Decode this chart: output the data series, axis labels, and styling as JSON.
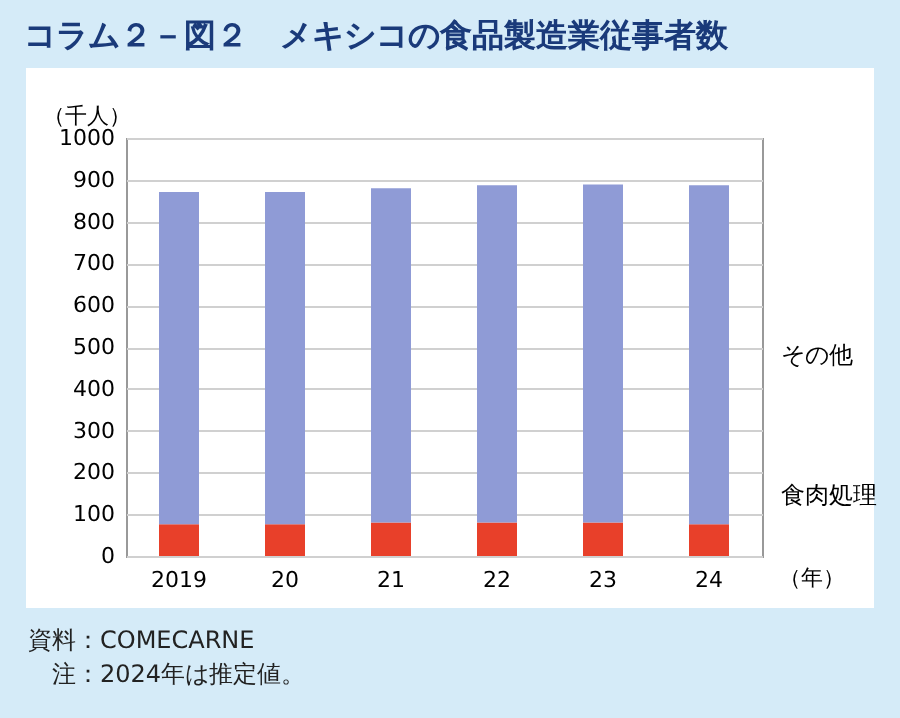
{
  "chart_data": {
    "type": "bar",
    "title": "コラム２－図２　メキシコの食品製造業従事者数",
    "ylabel": "（千人）",
    "xlabel": "（年）",
    "categories": [
      "2019",
      "20",
      "21",
      "22",
      "23",
      "24"
    ],
    "stacked": true,
    "series": [
      {
        "name": "食肉処理",
        "color": "#e8402a",
        "values": [
          76,
          76,
          80,
          80,
          80,
          76
        ]
      },
      {
        "name": "その他",
        "color": "#8f9bd6",
        "values": [
          795,
          795,
          800,
          807,
          809,
          811
        ]
      }
    ],
    "ylim": [
      0,
      1000
    ],
    "yticks": [
      0,
      100,
      200,
      300,
      400,
      500,
      600,
      700,
      800,
      900,
      1000
    ],
    "grid": "y",
    "annotations": [
      "資料：COMECARNE",
      "注：2024年は推定値。"
    ]
  }
}
